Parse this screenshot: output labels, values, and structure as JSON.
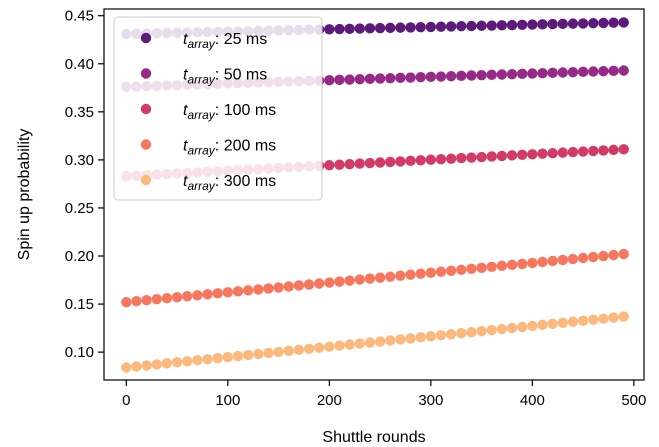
{
  "chart_data": {
    "type": "scatter",
    "title": "",
    "xlabel": "Shuttle rounds",
    "ylabel": "Spin up probability",
    "xlim": [
      -22,
      510
    ],
    "ylim": [
      0.071,
      0.457
    ],
    "xticks": [
      0,
      100,
      200,
      300,
      400,
      500
    ],
    "xtick_labels": [
      "0",
      "100",
      "200",
      "300",
      "400",
      "500"
    ],
    "yticks": [
      0.1,
      0.15,
      0.2,
      0.25,
      0.3,
      0.35,
      0.4,
      0.45
    ],
    "ytick_labels": [
      "0.10",
      "0.15",
      "0.20",
      "0.25",
      "0.30",
      "0.35",
      "0.40",
      "0.45"
    ],
    "grid": false,
    "legend_position": "top-left",
    "x_start": 0,
    "x_step": 10,
    "point_count": 50,
    "series": [
      {
        "name_main": "t",
        "name_sub": "array",
        "name_suffix": ": 25 ms",
        "color": "#5c1a7a",
        "y_start": 0.431,
        "y_end": 0.443
      },
      {
        "name_main": "t",
        "name_sub": "array",
        "name_suffix": ": 50 ms",
        "color": "#962a86",
        "y_start": 0.376,
        "y_end": 0.393
      },
      {
        "name_main": "t",
        "name_sub": "array",
        "name_suffix": ": 100 ms",
        "color": "#d23a68",
        "y_start": 0.283,
        "y_end": 0.311
      },
      {
        "name_main": "t",
        "name_sub": "array",
        "name_suffix": ": 200 ms",
        "color": "#f7775e",
        "y_start": 0.152,
        "y_end": 0.202
      },
      {
        "name_main": "t",
        "name_sub": "array",
        "name_suffix": ": 300 ms",
        "color": "#fcb97e",
        "y_start": 0.084,
        "y_end": 0.137
      }
    ]
  }
}
